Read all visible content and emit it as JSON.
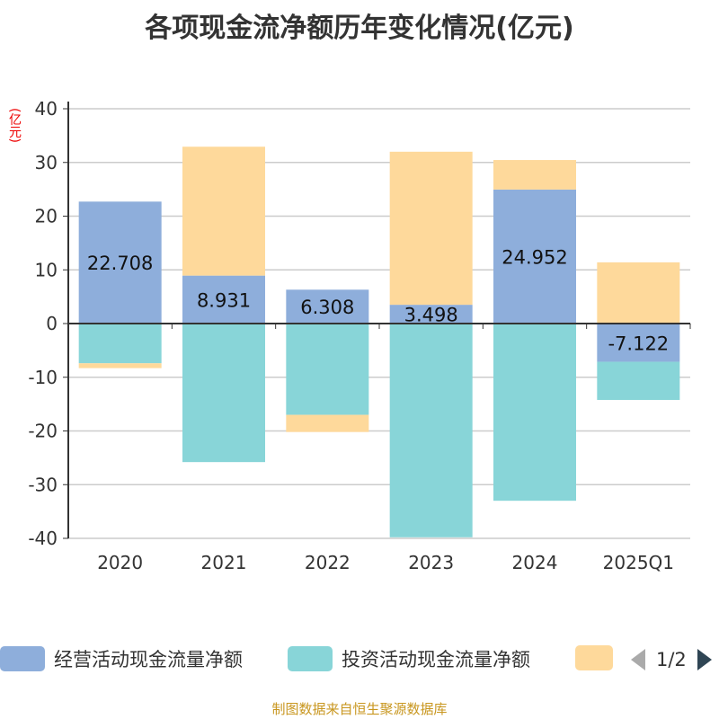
{
  "title": "各项现金流净额历年变化情况(亿元)",
  "unit": "(亿元)",
  "source": "制图数据来自恒生聚源数据库",
  "legend_page": "1/2",
  "chart_data": {
    "type": "bar",
    "stacked": true,
    "title": "各项现金流净额历年变化情况(亿元)",
    "ylabel": "(亿元)",
    "ylim": [
      -40,
      40
    ],
    "yticks": [
      40,
      30,
      20,
      10,
      0,
      -10,
      -20,
      -30,
      -40
    ],
    "grid": true,
    "legend_position": "bottom",
    "categories": [
      "2020",
      "2021",
      "2022",
      "2023",
      "2024",
      "2025Q1"
    ],
    "series": [
      {
        "name": "经营活动现金流量净额",
        "color": "#8eaedb",
        "values": [
          22.708,
          8.931,
          6.308,
          3.498,
          24.952,
          -7.122
        ],
        "labels": [
          "22.708",
          "8.931",
          "6.308",
          "3.498",
          "24.952",
          "-7.122"
        ]
      },
      {
        "name": "投资活动现金流量净额",
        "color": "#88d5d8",
        "values": [
          -7.4,
          -25.8,
          -17.0,
          -39.8,
          -33.0,
          -7.1
        ]
      },
      {
        "name": "",
        "color": "#fed99b",
        "values": [
          -0.9,
          24.0,
          -3.2,
          28.5,
          5.5,
          11.4
        ]
      }
    ]
  }
}
